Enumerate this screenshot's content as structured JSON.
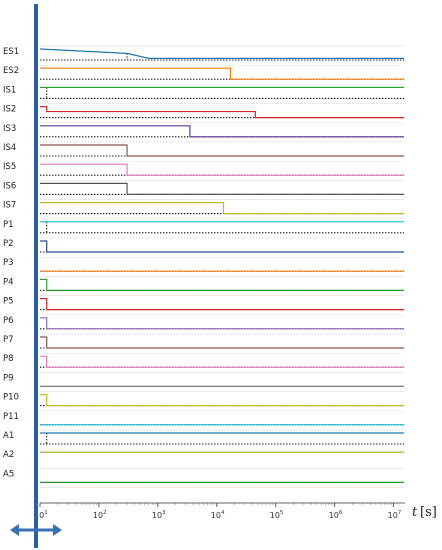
{
  "chart_data": {
    "type": "line",
    "step": true,
    "x_axis": {
      "scale": "log",
      "label_symbol": "t",
      "label_unit": "[s]",
      "ticks": [
        {
          "base": "10",
          "exp": "1",
          "value": 10
        },
        {
          "base": "10",
          "exp": "2",
          "value": 100
        },
        {
          "base": "10",
          "exp": "3",
          "value": 1000
        },
        {
          "base": "10",
          "exp": "4",
          "value": 10000
        },
        {
          "base": "10",
          "exp": "5",
          "value": 100000
        },
        {
          "base": "10",
          "exp": "6",
          "value": 1000000
        },
        {
          "base": "10",
          "exp": "7",
          "value": 10000000
        }
      ],
      "range": [
        10,
        15000000
      ]
    },
    "grid": "horizontal row separators",
    "reference_series_style": "dotted black",
    "rows": [
      {
        "label": "ES1",
        "color": "#1f77b4",
        "steps": [
          [
            10,
            1
          ],
          [
            300,
            0.6
          ],
          [
            700,
            0.15
          ],
          [
            15000000,
            0.15
          ]
        ],
        "ref": [
          [
            10,
            0
          ],
          [
            300,
            0
          ],
          [
            15000000,
            0
          ]
        ],
        "ref_drop": [
          300,
          0.6,
          0
        ]
      },
      {
        "label": "ES2",
        "color": "#ff7f0e",
        "steps": [
          [
            10,
            1
          ],
          [
            17000,
            1
          ],
          [
            17000,
            0
          ],
          [
            15000000,
            0
          ]
        ],
        "ref": [
          [
            10,
            0
          ],
          [
            15000000,
            0
          ]
        ]
      },
      {
        "label": "IS1",
        "color": "#2ca02c",
        "steps": [
          [
            10,
            1
          ],
          [
            15000000,
            1
          ]
        ],
        "ref": [
          [
            10,
            0
          ],
          [
            15000000,
            0
          ]
        ],
        "ref_drop": [
          13,
          1,
          0
        ]
      },
      {
        "label": "IS2",
        "color": "#d62728",
        "steps": [
          [
            10,
            1
          ],
          [
            13,
            1
          ],
          [
            13,
            0.55
          ],
          [
            45000,
            0.55
          ],
          [
            45000,
            0
          ],
          [
            15000000,
            0
          ]
        ],
        "ref": [
          [
            10,
            0
          ],
          [
            15000000,
            0
          ]
        ]
      },
      {
        "label": "IS3",
        "color": "#5a3d9a",
        "steps": [
          [
            10,
            1
          ],
          [
            3500,
            1
          ],
          [
            3500,
            0
          ],
          [
            15000000,
            0
          ]
        ],
        "ref": [
          [
            10,
            0
          ],
          [
            15000000,
            0
          ]
        ]
      },
      {
        "label": "IS4",
        "color": "#8c564b",
        "steps": [
          [
            10,
            1
          ],
          [
            300,
            1
          ],
          [
            300,
            0
          ],
          [
            15000000,
            0
          ]
        ],
        "ref": [
          [
            10,
            0
          ],
          [
            15000000,
            0
          ]
        ]
      },
      {
        "label": "IS5",
        "color": "#e377c2",
        "steps": [
          [
            10,
            1
          ],
          [
            300,
            1
          ],
          [
            300,
            0
          ],
          [
            15000000,
            0
          ]
        ],
        "ref": [
          [
            10,
            0
          ],
          [
            15000000,
            0
          ]
        ]
      },
      {
        "label": "IS6",
        "color": "#555555",
        "steps": [
          [
            10,
            1
          ],
          [
            300,
            1
          ],
          [
            300,
            0
          ],
          [
            15000000,
            0
          ]
        ],
        "ref": [
          [
            10,
            0
          ],
          [
            15000000,
            0
          ]
        ]
      },
      {
        "label": "IS7",
        "color": "#bcbd22",
        "steps": [
          [
            10,
            1
          ],
          [
            13000,
            1
          ],
          [
            13000,
            0
          ],
          [
            15000000,
            0
          ]
        ],
        "ref": [
          [
            10,
            0
          ],
          [
            15000000,
            0
          ]
        ]
      },
      {
        "label": "P1",
        "color": "#17becf",
        "steps": [
          [
            10,
            1
          ],
          [
            15000000,
            1
          ]
        ],
        "ref": [
          [
            10,
            0
          ],
          [
            15000000,
            0
          ]
        ],
        "ref_drop": [
          13,
          1,
          0
        ]
      },
      {
        "label": "P2",
        "color": "#1f4e9a",
        "steps": [
          [
            10,
            1
          ],
          [
            13,
            1
          ],
          [
            13,
            0
          ],
          [
            15000000,
            0
          ]
        ],
        "ref": [
          [
            10,
            0
          ],
          [
            15000000,
            0
          ]
        ]
      },
      {
        "label": "P3",
        "color": "#ff7f0e",
        "steps": [
          [
            10,
            0
          ],
          [
            15000000,
            0
          ]
        ],
        "ref": [
          [
            10,
            0
          ],
          [
            15000000,
            0
          ]
        ]
      },
      {
        "label": "P4",
        "color": "#2ca02c",
        "steps": [
          [
            10,
            1
          ],
          [
            13,
            1
          ],
          [
            13,
            0
          ],
          [
            15000000,
            0
          ]
        ],
        "ref": [
          [
            10,
            0
          ],
          [
            15000000,
            0
          ]
        ]
      },
      {
        "label": "P5",
        "color": "#d62728",
        "steps": [
          [
            10,
            1
          ],
          [
            13,
            1
          ],
          [
            13,
            0
          ],
          [
            15000000,
            0
          ]
        ],
        "ref": [
          [
            10,
            0
          ],
          [
            15000000,
            0
          ]
        ]
      },
      {
        "label": "P6",
        "color": "#9467bd",
        "steps": [
          [
            10,
            1
          ],
          [
            13,
            1
          ],
          [
            13,
            0
          ],
          [
            15000000,
            0
          ]
        ],
        "ref": [
          [
            10,
            0
          ],
          [
            15000000,
            0
          ]
        ]
      },
      {
        "label": "P7",
        "color": "#8c564b",
        "steps": [
          [
            10,
            1
          ],
          [
            13,
            1
          ],
          [
            13,
            0
          ],
          [
            15000000,
            0
          ]
        ],
        "ref": [
          [
            10,
            0
          ],
          [
            15000000,
            0
          ]
        ]
      },
      {
        "label": "P8",
        "color": "#e377c2",
        "steps": [
          [
            10,
            1
          ],
          [
            13,
            1
          ],
          [
            13,
            0
          ],
          [
            15000000,
            0
          ]
        ],
        "ref": [
          [
            10,
            0
          ],
          [
            15000000,
            0
          ]
        ]
      },
      {
        "label": "P9",
        "color": "#7f7f7f",
        "steps": [
          [
            10,
            0
          ],
          [
            15000000,
            0
          ]
        ],
        "ref": [
          [
            10,
            0
          ],
          [
            15000000,
            0
          ]
        ]
      },
      {
        "label": "P10",
        "color": "#bcbd22",
        "steps": [
          [
            10,
            1
          ],
          [
            13,
            1
          ],
          [
            13,
            0
          ],
          [
            15000000,
            0
          ]
        ],
        "ref": [
          [
            10,
            0
          ],
          [
            15000000,
            0
          ]
        ]
      },
      {
        "label": "P11",
        "color": "#17becf",
        "steps": [
          [
            10,
            0
          ],
          [
            15000000,
            0
          ]
        ],
        "ref": [
          [
            10,
            0
          ],
          [
            15000000,
            0
          ]
        ]
      },
      {
        "label": "A1",
        "color": "#1f77b4",
        "steps": [
          [
            10,
            1
          ],
          [
            15000000,
            1
          ]
        ],
        "ref": [
          [
            10,
            0
          ],
          [
            15000000,
            0
          ]
        ],
        "ref_drop": [
          13,
          1,
          0
        ]
      },
      {
        "label": "A2",
        "color": "#bcbd22",
        "steps": [
          [
            10,
            1
          ],
          [
            15000000,
            1
          ]
        ],
        "ref": [
          [
            10,
            1
          ],
          [
            15000000,
            1
          ]
        ]
      },
      {
        "label": "A5",
        "color": "#2ca02c",
        "steps": [
          [
            10,
            0
          ],
          [
            15000000,
            0
          ]
        ],
        "ref": [
          [
            10,
            0
          ],
          [
            15000000,
            0
          ]
        ]
      }
    ],
    "overlay": {
      "vertical_marker_color": "#2a5fa8",
      "arrow_color": "#3a6fb8"
    }
  }
}
